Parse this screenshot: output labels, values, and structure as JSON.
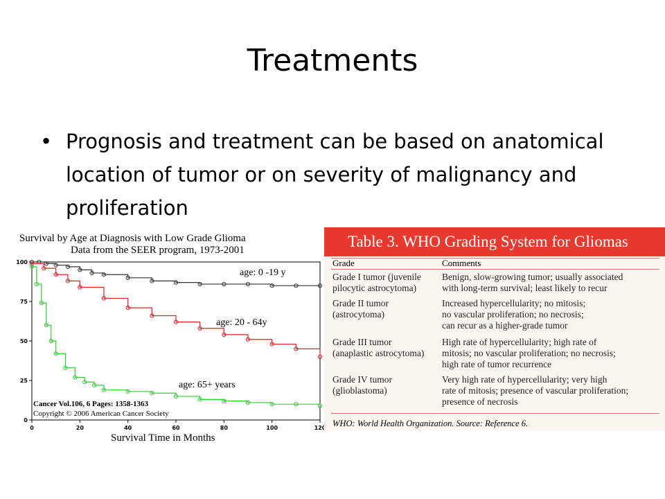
{
  "slide": {
    "title": "Treatments",
    "bullet": "Prognosis and treatment can be based on anatomical location of tumor or on severity of malignancy and proliferation"
  },
  "chart_data": {
    "type": "line",
    "title": "Survival by Age at Diagnosis with Low Grade Glioma",
    "subtitle": "Data from the SEER program, 1973-2001",
    "xlabel": "Survival Time in Months",
    "ylabel": "",
    "x_ticks": [
      0,
      20,
      40,
      60,
      80,
      100,
      120
    ],
    "y_ticks": [
      0,
      25,
      50,
      75,
      100
    ],
    "xlim": [
      0,
      120
    ],
    "ylim": [
      0,
      100
    ],
    "grid": false,
    "series": [
      {
        "name": "age: 0 -19 y",
        "color": "#333333",
        "x": [
          0,
          3,
          6,
          10,
          15,
          20,
          25,
          30,
          40,
          50,
          60,
          70,
          80,
          90,
          100,
          110,
          120
        ],
        "y": [
          100,
          100,
          99,
          98,
          97,
          95,
          93,
          92,
          90,
          88,
          87,
          86,
          86,
          86,
          85,
          85,
          85
        ]
      },
      {
        "name": "age: 20 - 64y",
        "color": "#e02020",
        "x": [
          0,
          5,
          10,
          15,
          20,
          30,
          40,
          50,
          60,
          70,
          80,
          90,
          100,
          110,
          120
        ],
        "y": [
          99,
          96,
          92,
          88,
          84,
          77,
          71,
          66,
          62,
          58,
          54,
          51,
          48,
          45,
          40
        ]
      },
      {
        "name": "age: 65+ years",
        "color": "#33cc33",
        "x": [
          0,
          2,
          4,
          6,
          8,
          10,
          14,
          18,
          22,
          26,
          30,
          40,
          50,
          60,
          70,
          80,
          90,
          100,
          110,
          120
        ],
        "y": [
          97,
          86,
          74,
          60,
          50,
          42,
          33,
          27,
          24,
          22,
          19,
          18,
          17,
          15,
          13,
          12,
          11,
          10,
          10,
          9
        ]
      }
    ],
    "source_line1": "Cancer Vol.106, 6 Pages: 1358-1363",
    "source_line2": "Copyright © 2006 American Cancer Society"
  },
  "who_table": {
    "title": "Table 3. WHO Grading System for Gliomas",
    "header_color": "#e8392f",
    "columns": [
      "Grade",
      "Comments"
    ],
    "rows": [
      {
        "grade": "Grade I tumor (juvenile\npilocytic astrocytoma)",
        "comments": "Benign, slow-growing tumor; usually associated\nwith long-term survival; least likely to recur"
      },
      {
        "grade": "Grade II tumor\n(astrocytoma)",
        "comments": "Increased hypercellularity; no mitosis;\nno vascular proliferation; no necrosis;\ncan recur as a higher-grade tumor"
      },
      {
        "grade": "Grade III tumor\n(anaplastic astrocytoma)",
        "comments": "High rate of hypercellularity; high rate of\nmitosis; no vascular proliferation; no necrosis;\nhigh rate of tumor recurrence"
      },
      {
        "grade": "Grade IV tumor\n(glioblastoma)",
        "comments": "Very high rate of hypercellularity; very high\nrate of mitosis; presence of vascular proliferation;\npresence of necrosis"
      }
    ],
    "footnote": "WHO: World Health Organization. Source: Reference 6."
  }
}
